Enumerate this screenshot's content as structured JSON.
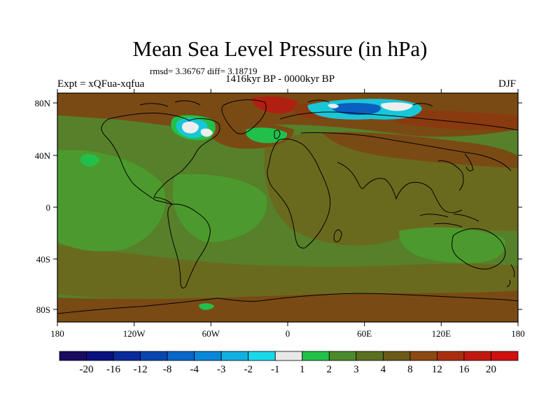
{
  "header": {
    "title": "Mean Sea Level Pressure (in hPa)",
    "stats": "rmsd= 3.36767 diff= 3.18719",
    "experiment": "Expt = xQFua-xqfua",
    "period": "1416kyr BP - 0000kyr BP",
    "season": "DJF"
  },
  "map": {
    "lat_labels": [
      "80N",
      "40N",
      "0",
      "40S",
      "80S"
    ],
    "lon_labels": [
      "180",
      "120W",
      "60W",
      "0",
      "60E",
      "120E",
      "180"
    ],
    "colors": {
      "base": "#57802a",
      "light_green": "#4c9a2d",
      "olive": "#6a6a1e",
      "brown": "#7a4a14",
      "dark_brown": "#8a3a0f",
      "red": "#b02010",
      "bright_green": "#22c04a",
      "cyan": "#19c6d8",
      "blue": "#0a5fc0",
      "white": "#eeeeee",
      "land_line": "#000000"
    }
  },
  "colorbar": {
    "labels": [
      "-20",
      "-16",
      "-12",
      "-8",
      "-4",
      "-3",
      "-2",
      "-1",
      "1",
      "2",
      "3",
      "4",
      "8",
      "12",
      "16",
      "20"
    ],
    "colors": [
      "#1a0a60",
      "#0a1080",
      "#0a2a9a",
      "#0a46b0",
      "#0a66c8",
      "#0a86d8",
      "#12b0e0",
      "#1ad8e8",
      "#e8e8e8",
      "#22c04a",
      "#4c8a2a",
      "#5a7020",
      "#6a5a18",
      "#8a4a12",
      "#a83010",
      "#c01a10",
      "#d01010"
    ]
  }
}
